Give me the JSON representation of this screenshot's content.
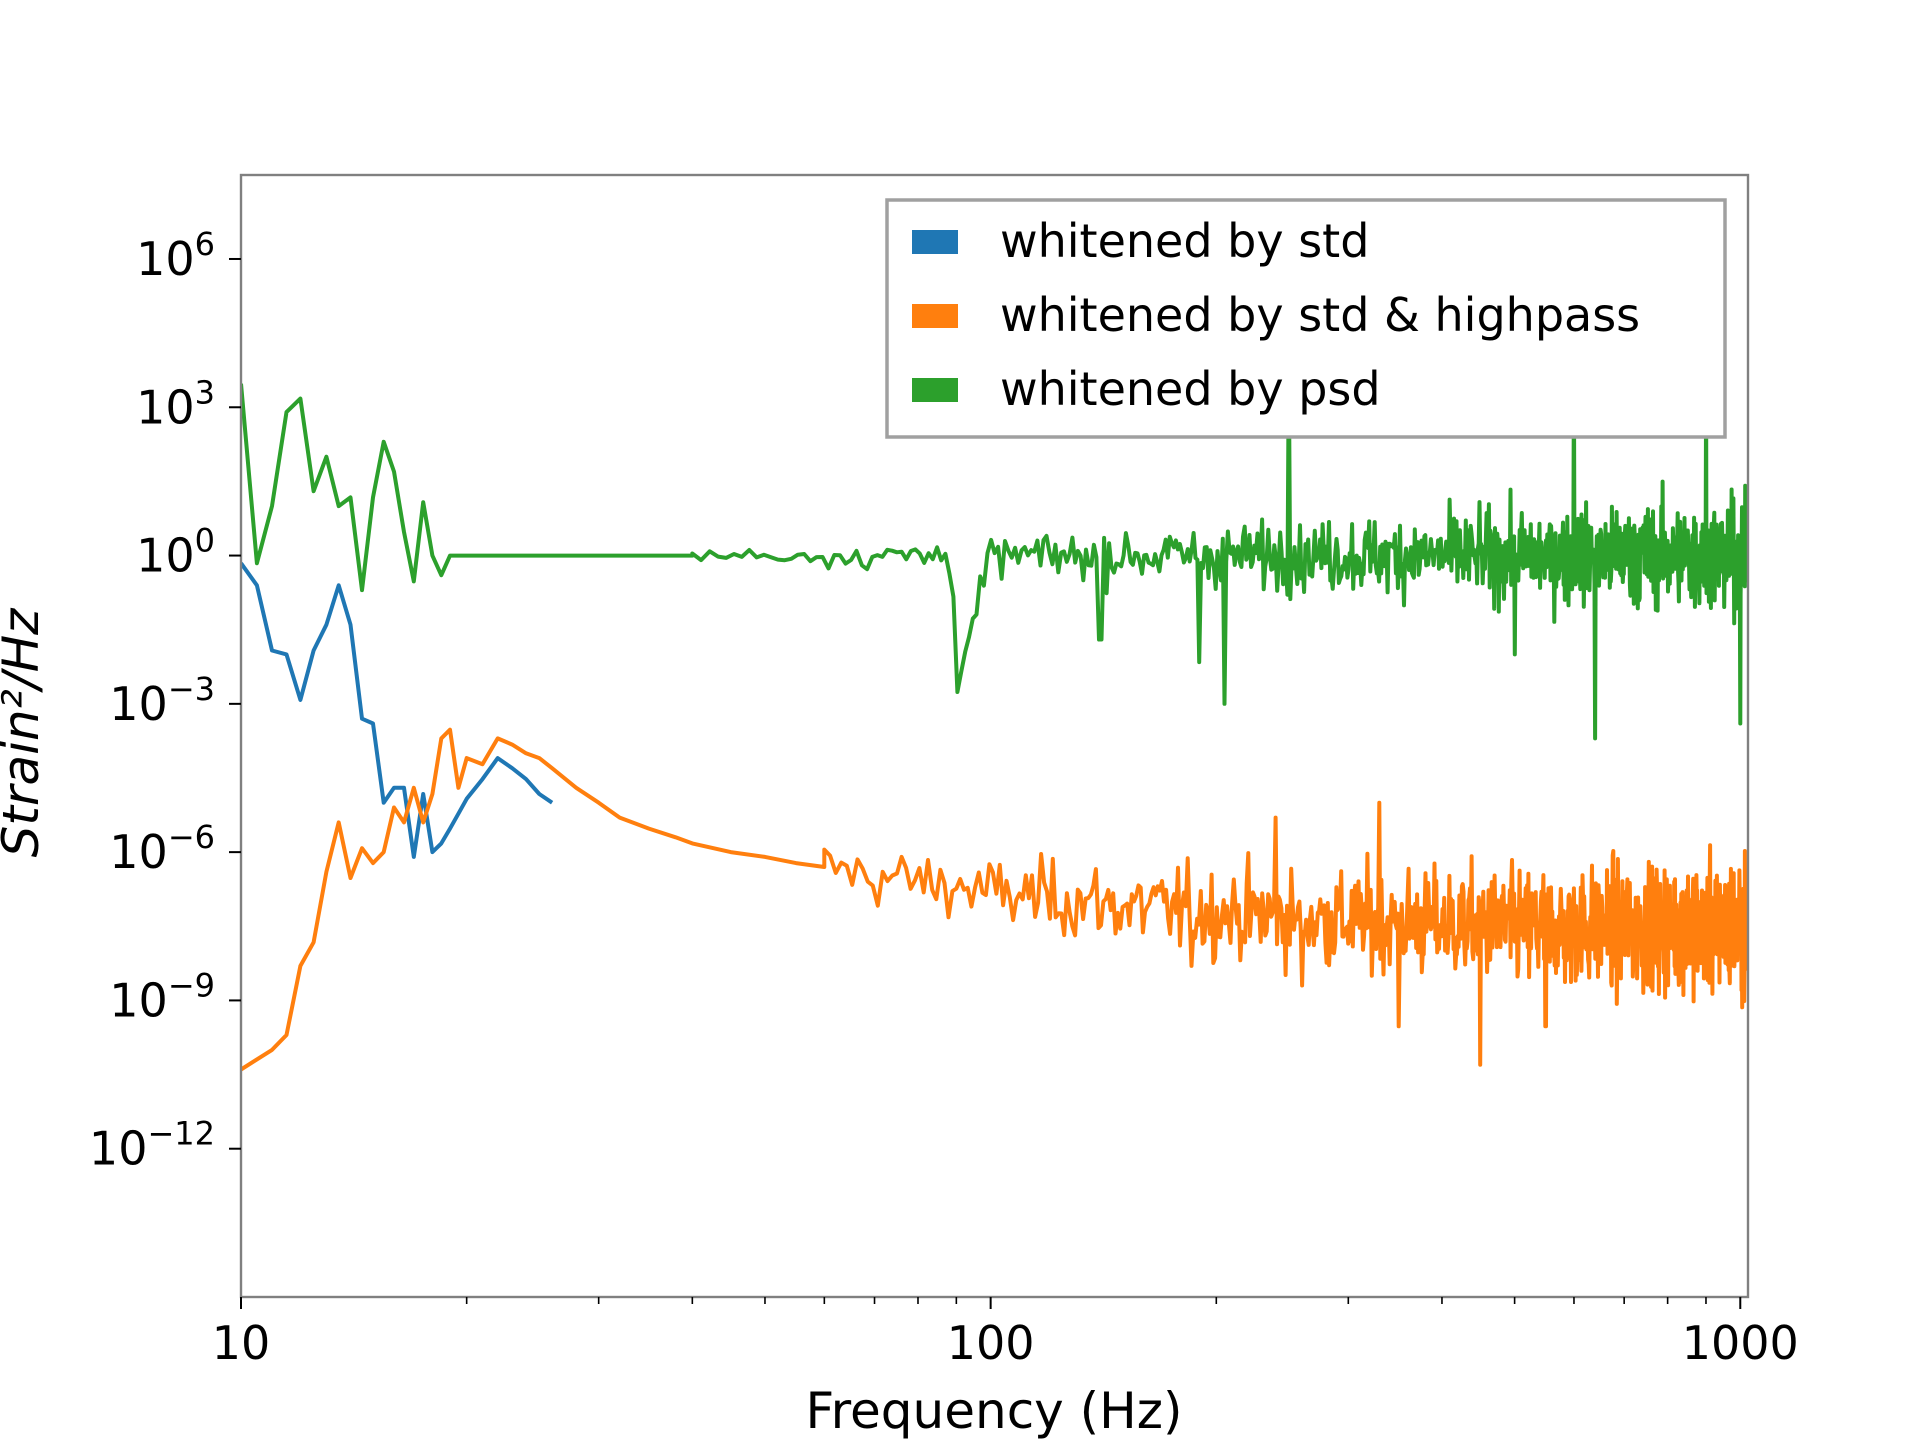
{
  "chart_data": {
    "type": "line",
    "title": "",
    "xlabel": "Frequency (Hz)",
    "ylabel": "Strain²/Hz",
    "x_scale": "log",
    "y_scale": "log",
    "xlim": [
      10,
      1024
    ],
    "ylim": [
      1e-15,
      50000000.0
    ],
    "x_ticks": [
      {
        "value": 10,
        "label": "10"
      },
      {
        "value": 100,
        "label": "100"
      },
      {
        "value": 1000,
        "label": "1000"
      }
    ],
    "y_ticks": [
      {
        "value": 1000000.0,
        "base": "10",
        "exp": "6"
      },
      {
        "value": 1000.0,
        "base": "10",
        "exp": "3"
      },
      {
        "value": 1,
        "base": "10",
        "exp": "0"
      },
      {
        "value": 0.001,
        "base": "10",
        "exp": "−3"
      },
      {
        "value": 1e-06,
        "base": "10",
        "exp": "−6"
      },
      {
        "value": 1e-09,
        "base": "10",
        "exp": "−9"
      },
      {
        "value": 1e-12,
        "base": "10",
        "exp": "−12"
      }
    ],
    "grid": false,
    "legend_position": "top-right",
    "series": [
      {
        "name": "whitened by std",
        "color": "#1f77b4",
        "x": [
          10,
          10.5,
          11,
          11.5,
          12,
          12.5,
          13,
          13.5,
          14,
          14.5,
          15,
          15.5,
          16,
          16.5,
          17,
          17.5,
          18,
          18.5,
          19,
          19.5,
          20,
          21,
          22,
          23,
          24,
          25,
          26
        ],
        "y": [
          0.7,
          0.25,
          0.012,
          0.01,
          0.0012,
          0.012,
          0.04,
          0.25,
          0.04,
          0.0005,
          0.0004,
          1e-05,
          2e-05,
          2e-05,
          8e-07,
          1.5e-05,
          1e-06,
          1.5e-06,
          3e-06,
          6e-06,
          1.2e-05,
          3e-05,
          8e-05,
          5e-05,
          3e-05,
          1.5e-05,
          1e-05
        ]
      },
      {
        "name": "whitened by std & highpass",
        "color": "#ff7f0e",
        "x": [
          10,
          11,
          11.5,
          12,
          12.5,
          13,
          13.5,
          14,
          14.5,
          15,
          15.5,
          16,
          16.5,
          17,
          17.5,
          18,
          18.5,
          19,
          19.5,
          20,
          21,
          22,
          23,
          24,
          25,
          26,
          28,
          30,
          32,
          35,
          38,
          40,
          45,
          50,
          55,
          60,
          65,
          70,
          75,
          80,
          90,
          100,
          120,
          150,
          200,
          250,
          300,
          400,
          500,
          600,
          700,
          800,
          900,
          1000,
          1024
        ],
        "y": [
          4e-11,
          1e-10,
          2e-10,
          5e-09,
          1.5e-08,
          4e-07,
          4e-06,
          3e-07,
          1.2e-06,
          6e-07,
          1e-06,
          8e-06,
          4e-06,
          2e-05,
          4e-06,
          1.5e-05,
          0.0002,
          0.0003,
          2e-05,
          8e-05,
          6e-05,
          0.0002,
          0.00015,
          0.0001,
          8e-05,
          5e-05,
          2e-05,
          1e-05,
          5e-06,
          3e-06,
          2e-06,
          1.5e-06,
          1e-06,
          8e-07,
          6e-07,
          5e-07,
          4e-07,
          3e-07,
          3e-07,
          2.5e-07,
          2e-07,
          1.5e-07,
          1.2e-07,
          8e-08,
          6e-08,
          5e-08,
          4e-08,
          3.5e-08,
          3e-08,
          3e-08,
          3e-08,
          3e-08,
          3e-08,
          3e-08,
          3e-08
        ]
      },
      {
        "name": "whitened by psd",
        "color": "#2ca02c",
        "x": [
          10,
          10.5,
          11,
          11.5,
          12,
          12.5,
          13,
          13.5,
          14,
          14.5,
          15,
          15.5,
          16,
          16.5,
          17,
          17.5,
          18,
          18.5,
          19,
          20,
          25,
          30,
          40,
          50,
          60,
          70,
          80,
          89,
          90,
          100,
          150,
          200,
          300,
          400,
          500,
          600,
          640,
          700,
          800,
          900,
          1000,
          1024
        ],
        "y": [
          3000,
          0.7,
          10,
          800,
          1500,
          20,
          100,
          10,
          15,
          0.2,
          15,
          200,
          50,
          3,
          0.3,
          12,
          1,
          0.4,
          1,
          1,
          1,
          1,
          1,
          1,
          1,
          1,
          1,
          1,
          0.002,
          1,
          1,
          1,
          1,
          1,
          1,
          1,
          1,
          1,
          1,
          1,
          1,
          1
        ]
      }
    ],
    "noise": [
      {
        "series": 1,
        "from": 60,
        "to": 1024,
        "spread_start": 1.0,
        "spread_end": 2.5,
        "n": 900
      },
      {
        "series": 2,
        "from": 40,
        "to": 1024,
        "spread_start": 0.2,
        "spread_end": 2.0,
        "n": 900
      }
    ],
    "spikes": [
      {
        "series": 1,
        "x": 450,
        "y": 5e-11
      },
      {
        "series": 1,
        "x": 350,
        "y": 3e-10
      },
      {
        "series": 1,
        "x": 550,
        "y": 3e-10
      },
      {
        "series": 1,
        "x": 260,
        "y": 2e-09
      },
      {
        "series": 1,
        "x": 185,
        "y": 5e-09
      },
      {
        "series": 1,
        "x": 240,
        "y": 5e-06
      },
      {
        "series": 1,
        "x": 330,
        "y": 1e-05
      },
      {
        "series": 2,
        "x": 640,
        "y": 0.0002
      },
      {
        "series": 2,
        "x": 600,
        "y": 5000
      },
      {
        "series": 2,
        "x": 250,
        "y": 8000
      },
      {
        "series": 2,
        "x": 1000,
        "y": 0.0004
      },
      {
        "series": 2,
        "x": 900,
        "y": 3000
      },
      {
        "series": 2,
        "x": 140,
        "y": 0.02
      },
      {
        "series": 2,
        "x": 190,
        "y": 0.007
      },
      {
        "series": 2,
        "x": 205,
        "y": 0.001
      },
      {
        "series": 2,
        "x": 500,
        "y": 0.01
      }
    ]
  }
}
